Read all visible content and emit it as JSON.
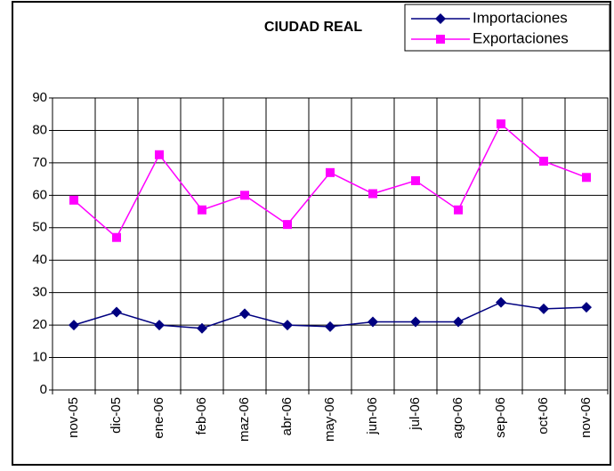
{
  "chart_data": {
    "type": "line",
    "title": "CIUDAD REAL",
    "categories": [
      "nov-05",
      "dic-05",
      "ene-06",
      "feb-06",
      "maz-06",
      "abr-06",
      "may-06",
      "jun-06",
      "jul-06",
      "ago-06",
      "sep-06",
      "oct-06",
      "nov-06"
    ],
    "series": [
      {
        "name": "Importaciones",
        "color": "#000080",
        "marker": "diamond",
        "values": [
          20,
          24,
          20,
          19,
          23.5,
          20,
          19.5,
          21,
          21,
          21,
          27,
          25,
          25.5
        ]
      },
      {
        "name": "Exportaciones",
        "color": "#ff00ff",
        "marker": "square",
        "values": [
          58.5,
          47,
          72.5,
          55.5,
          60,
          51,
          67,
          60.5,
          64.5,
          55.5,
          82,
          70.5,
          65.5
        ]
      }
    ],
    "ylim": [
      0,
      90
    ],
    "yticks": [
      0,
      10,
      20,
      30,
      40,
      50,
      60,
      70,
      80,
      90
    ],
    "grid": true,
    "legend": "top-right"
  }
}
